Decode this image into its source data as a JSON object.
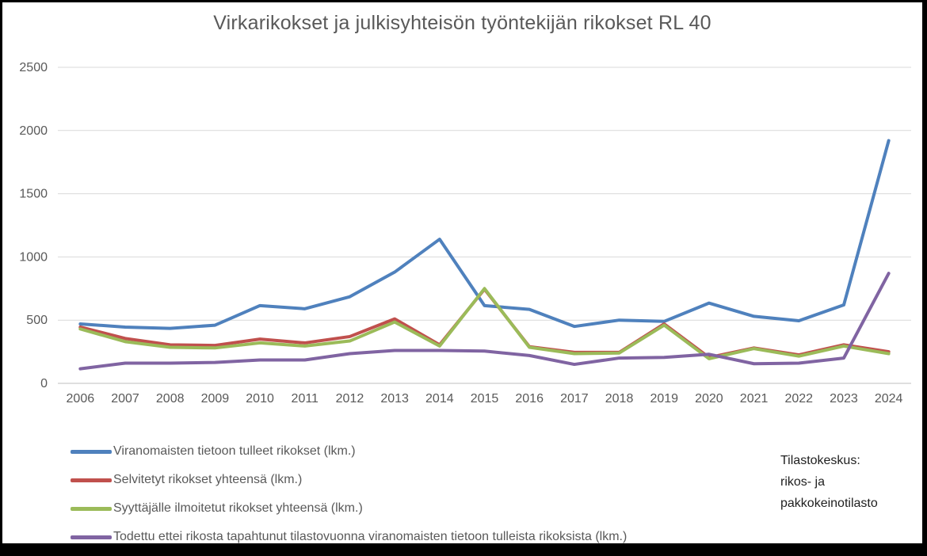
{
  "chart_data": {
    "type": "line",
    "title": "Virkarikokset ja julkisyhteisön työntekijän rikokset RL 40",
    "categories": [
      "2006",
      "2007",
      "2008",
      "2009",
      "2010",
      "2011",
      "2012",
      "2013",
      "2014",
      "2015",
      "2016",
      "2017",
      "2018",
      "2019",
      "2020",
      "2021",
      "2022",
      "2023",
      "2024"
    ],
    "series": [
      {
        "name": "Viranomaisten tietoon tulleet rikokset (lkm.)",
        "color": "#4F81BD",
        "values": [
          470,
          445,
          435,
          460,
          615,
          590,
          685,
          880,
          1140,
          615,
          585,
          450,
          500,
          490,
          635,
          530,
          495,
          620,
          1920
        ]
      },
      {
        "name": "Selvitetyt rikokset yhteensä (lkm.)",
        "color": "#C0504D",
        "values": [
          445,
          355,
          305,
          300,
          350,
          320,
          370,
          510,
          305,
          745,
          290,
          245,
          245,
          470,
          205,
          280,
          225,
          305,
          250
        ]
      },
      {
        "name": "Syyttäjälle ilmoitetut rikokset yhteensä (lkm.)",
        "color": "#9BBB59",
        "values": [
          430,
          330,
          285,
          280,
          320,
          295,
          335,
          485,
          295,
          750,
          285,
          235,
          240,
          460,
          195,
          275,
          215,
          295,
          235
        ]
      },
      {
        "name": "Todettu ettei rikosta tapahtunut tilastovuonna viranomaisten tietoon tulleista rikoksista (lkm.)",
        "color": "#8064A2",
        "values": [
          115,
          160,
          160,
          165,
          185,
          185,
          235,
          260,
          260,
          255,
          220,
          150,
          200,
          205,
          230,
          155,
          160,
          200,
          870
        ]
      }
    ],
    "y_ticks": [
      0,
      500,
      1000,
      1500,
      2000,
      2500
    ],
    "ylim": [
      0,
      2500
    ],
    "grid": true,
    "legend_position": "bottom-left"
  },
  "annotation": {
    "lines": [
      "Tilastokeskus:",
      "rikos- ja",
      "pakkokeinotilasto"
    ]
  }
}
